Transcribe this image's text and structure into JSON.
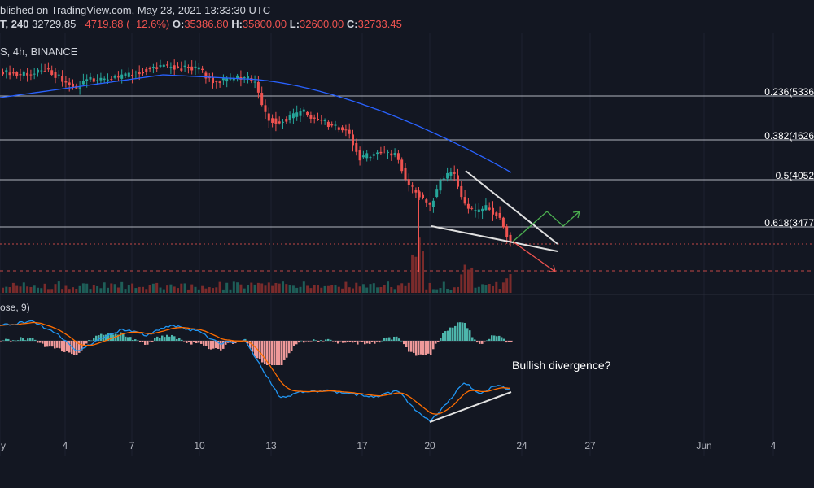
{
  "header": {
    "published": "blished on TradingView.com, May 23, 2021 13:33:30 UTC",
    "ticker_frag": "T,",
    "interval": "240",
    "last": "32729.85",
    "change": "−4719.88 (−12.6%)",
    "o_label": "O:",
    "o_val": "35386.80",
    "h_label": "H:",
    "h_val": "35800.00",
    "l_label": "L:",
    "l_val": "32600.00",
    "c_label": "C:",
    "c_val": "32733.45"
  },
  "symbol_line": "S, 4h, BINANCE",
  "macd_label": "ose, 9)",
  "annotation": "Bullish divergence?",
  "colors": {
    "background": "#131722",
    "up": "#26a69a",
    "down": "#ef5350",
    "ma": "#2962ff",
    "macd": "#2196f3",
    "signal": "#ff6d00",
    "fib": "#b2b5be",
    "pattern": "#e0e0e0"
  },
  "chart_data": {
    "type": "candlestick",
    "interval": "4h",
    "exchange": "BINANCE",
    "x_ticks": [
      "y",
      "4",
      "7",
      "10",
      "13",
      "17",
      "20",
      "24",
      "27",
      "Jun",
      "4"
    ],
    "fib_levels": [
      {
        "label": "0.236(5336",
        "ratio": 0.236
      },
      {
        "label": "0.382(4626",
        "ratio": 0.382
      },
      {
        "label": "0.5(4052",
        "ratio": 0.5
      },
      {
        "label": "0.618(3477",
        "ratio": 0.618
      }
    ],
    "last_bar": {
      "open": 35386.8,
      "high": 35800.0,
      "low": 32600.0,
      "close": 32733.45,
      "change": -4719.88,
      "change_pct": -12.6
    },
    "annotations": [
      "Bullish divergence?"
    ]
  }
}
